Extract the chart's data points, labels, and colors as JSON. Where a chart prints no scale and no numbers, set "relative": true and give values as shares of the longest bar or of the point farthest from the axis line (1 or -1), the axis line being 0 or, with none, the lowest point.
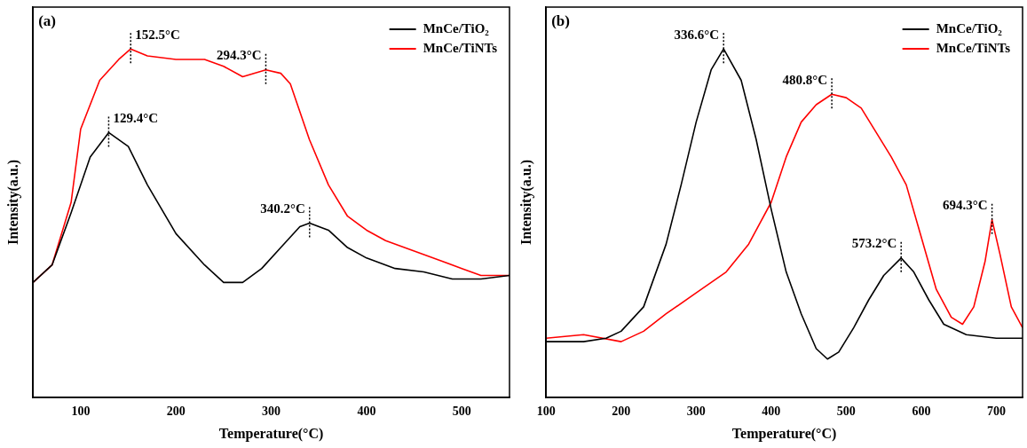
{
  "chart_data": [
    {
      "type": "line",
      "title": "(a)",
      "xlabel": "Temperature(°C)",
      "ylabel": "Intensity(a.u.)",
      "relative": true,
      "xlim": [
        50,
        550
      ],
      "xticks": [
        100,
        200,
        300,
        400,
        500
      ],
      "legend": "top right",
      "grid": false,
      "marker": "none",
      "line_style": "solid",
      "series": [
        {
          "name": "MnCe/TiO₂",
          "color": "#000000",
          "x": [
            50,
            70,
            90,
            110,
            129.4,
            150,
            170,
            200,
            230,
            250,
            270,
            290,
            310,
            330,
            340.2,
            360,
            380,
            400,
            430,
            460,
            490,
            520,
            550
          ],
          "values": [
            0.33,
            0.38,
            0.53,
            0.69,
            0.76,
            0.72,
            0.61,
            0.47,
            0.38,
            0.33,
            0.33,
            0.37,
            0.43,
            0.49,
            0.5,
            0.48,
            0.43,
            0.4,
            0.37,
            0.36,
            0.34,
            0.34,
            0.35
          ]
        },
        {
          "name": "MnCe/TiNTs",
          "color": "#ff0000",
          "x": [
            50,
            70,
            90,
            100,
            120,
            140,
            152.5,
            170,
            200,
            230,
            250,
            270,
            294.3,
            310,
            320,
            340,
            360,
            380,
            400,
            420,
            450,
            480,
            500,
            520,
            550
          ],
          "values": [
            0.33,
            0.38,
            0.56,
            0.77,
            0.91,
            0.97,
            1.0,
            0.98,
            0.97,
            0.97,
            0.95,
            0.92,
            0.94,
            0.93,
            0.9,
            0.74,
            0.61,
            0.52,
            0.48,
            0.45,
            0.42,
            0.39,
            0.37,
            0.35,
            0.35
          ]
        }
      ],
      "annotations": [
        {
          "text": "152.5°C",
          "x": 152.5,
          "y": 1.0
        },
        {
          "text": "294.3°C",
          "x": 294.3,
          "y": 0.94
        },
        {
          "text": "129.4°C",
          "x": 129.4,
          "y": 0.76
        },
        {
          "text": "340.2°C",
          "x": 340.2,
          "y": 0.5
        }
      ]
    },
    {
      "type": "line",
      "title": "(b)",
      "xlabel": "Temperature(°C)",
      "ylabel": "Intensity(a.u.)",
      "relative": true,
      "xlim": [
        100,
        735
      ],
      "xticks": [
        100,
        200,
        300,
        400,
        500,
        600,
        700
      ],
      "legend": "top right",
      "grid": false,
      "marker": "none",
      "line_style": "solid",
      "series": [
        {
          "name": "MnCe/TiO₂",
          "color": "#000000",
          "x": [
            100,
            150,
            180,
            200,
            230,
            260,
            280,
            300,
            320,
            336.6,
            360,
            380,
            400,
            420,
            440,
            460,
            475,
            490,
            510,
            530,
            550,
            573.2,
            590,
            610,
            630,
            660,
            700,
            735
          ],
          "values": [
            0.16,
            0.16,
            0.17,
            0.19,
            0.26,
            0.44,
            0.61,
            0.79,
            0.94,
            1.0,
            0.91,
            0.74,
            0.54,
            0.36,
            0.24,
            0.14,
            0.11,
            0.13,
            0.2,
            0.28,
            0.35,
            0.4,
            0.36,
            0.28,
            0.21,
            0.18,
            0.17,
            0.17
          ]
        },
        {
          "name": "MnCe/TiNTs",
          "color": "#ff0000",
          "x": [
            100,
            150,
            200,
            230,
            260,
            300,
            340,
            370,
            400,
            420,
            440,
            460,
            480.8,
            500,
            520,
            540,
            560,
            580,
            600,
            620,
            640,
            655,
            670,
            685,
            694.3,
            705,
            720,
            735
          ],
          "values": [
            0.17,
            0.18,
            0.16,
            0.19,
            0.24,
            0.3,
            0.36,
            0.44,
            0.56,
            0.69,
            0.79,
            0.84,
            0.87,
            0.86,
            0.83,
            0.76,
            0.69,
            0.61,
            0.46,
            0.31,
            0.23,
            0.21,
            0.26,
            0.39,
            0.51,
            0.41,
            0.26,
            0.2
          ]
        }
      ],
      "annotations": [
        {
          "text": "336.6°C",
          "x": 336.6,
          "y": 1.0
        },
        {
          "text": "480.8°C",
          "x": 480.8,
          "y": 0.87
        },
        {
          "text": "573.2°C",
          "x": 573.2,
          "y": 0.4
        },
        {
          "text": "694.3°C",
          "x": 694.3,
          "y": 0.51
        }
      ]
    }
  ]
}
